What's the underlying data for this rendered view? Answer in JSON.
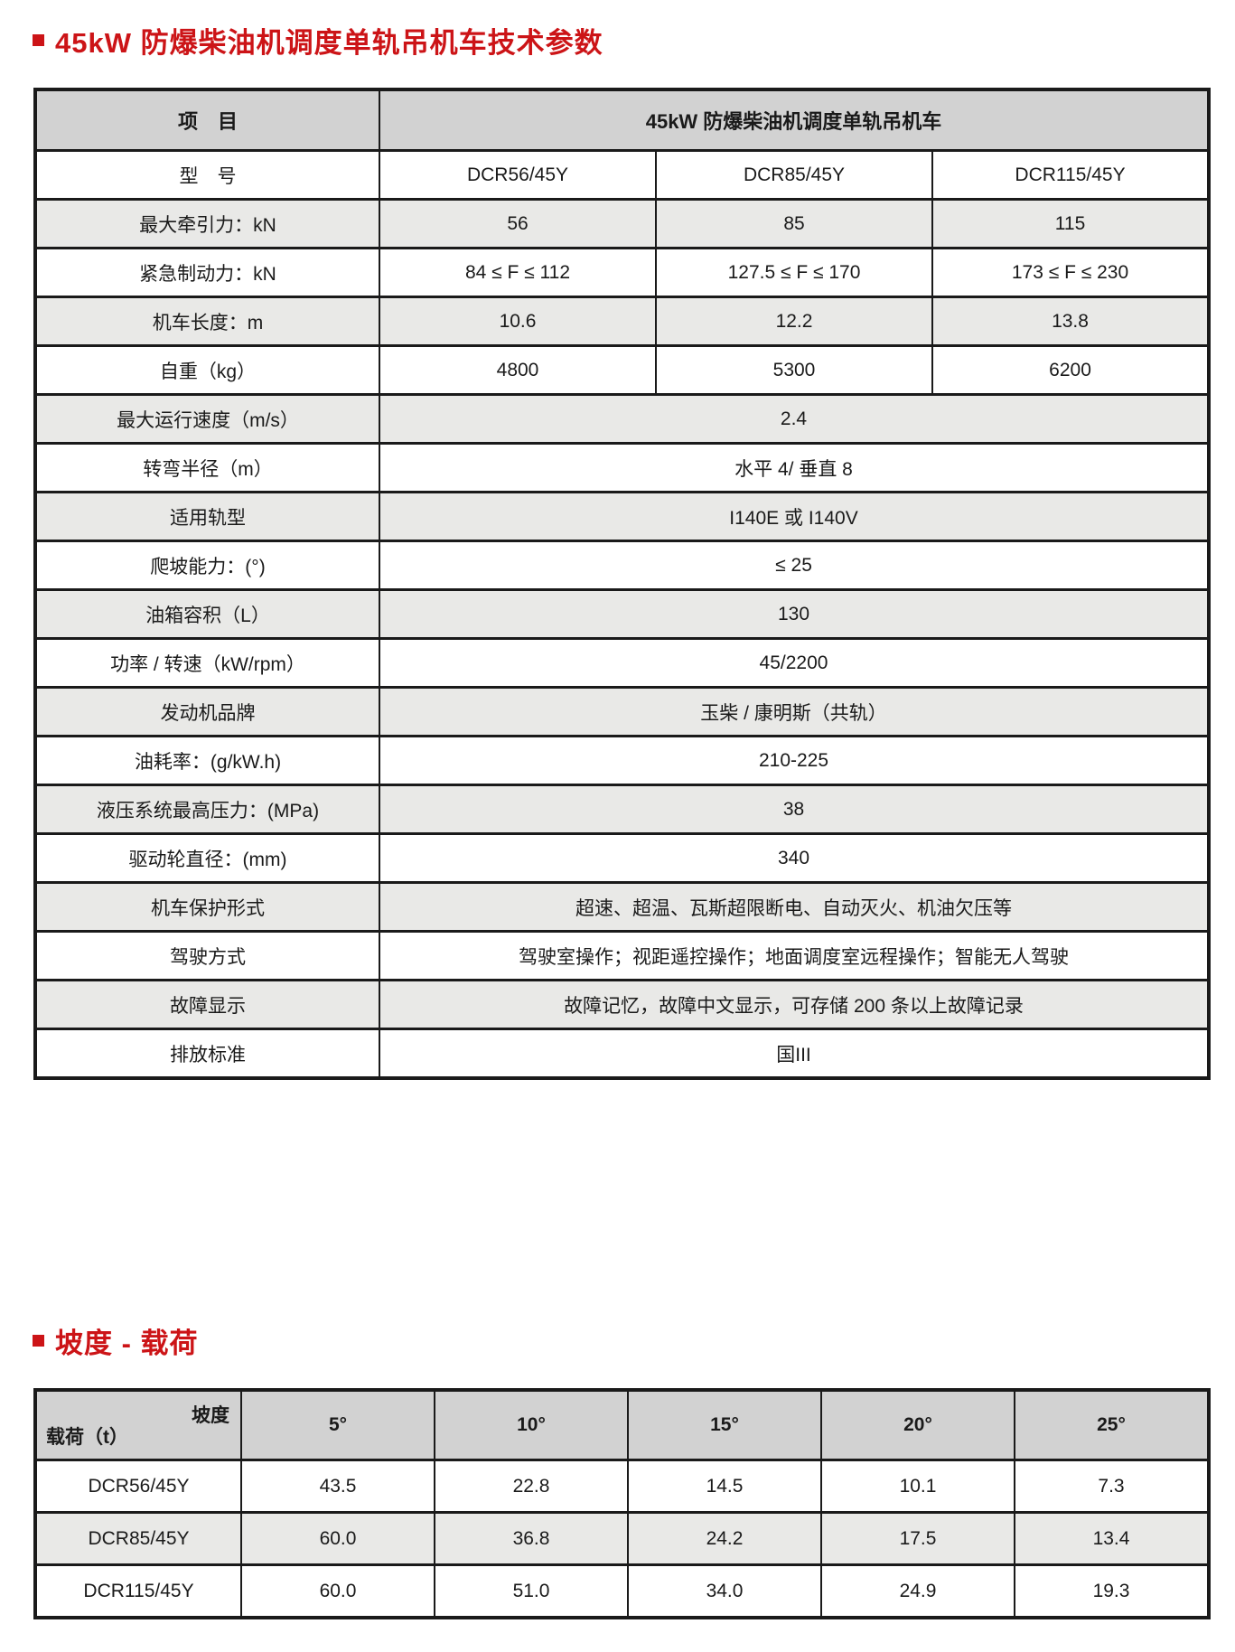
{
  "page": {
    "section1_title": "45kW 防爆柴油机调度单轨吊机车技术参数",
    "section2_title": "坡度 - 载荷"
  },
  "colors": {
    "accent_red": "#cc1417",
    "table_header_gray": "#d2d2d2",
    "alt_row_gray": "#e9e9e7",
    "border_black": "#1a1a1a"
  },
  "spec_table": {
    "header": {
      "item_label": "项　目",
      "group_label": "45kW 防爆柴油机调度单轨吊机车"
    },
    "rows": [
      {
        "label": "型　号",
        "values": [
          "DCR56/45Y",
          "DCR85/45Y",
          "DCR115/45Y"
        ],
        "shaded": false
      },
      {
        "label": "最大牵引力：kN",
        "values": [
          "56",
          "85",
          "115"
        ],
        "shaded": true
      },
      {
        "label": "紧急制动力：kN",
        "values": [
          "84 ≤ F ≤ 112",
          "127.5 ≤ F ≤ 170",
          "173 ≤ F ≤ 230"
        ],
        "shaded": false
      },
      {
        "label": "机车长度：m",
        "values": [
          "10.6",
          "12.2",
          "13.8"
        ],
        "shaded": true
      },
      {
        "label": "自重（kg）",
        "values": [
          "4800",
          "5300",
          "6200"
        ],
        "shaded": false
      },
      {
        "label": "最大运行速度（m/s）",
        "values": [
          "2.4"
        ],
        "shaded": true
      },
      {
        "label": "转弯半径（m）",
        "values": [
          "水平 4/ 垂直 8"
        ],
        "shaded": false
      },
      {
        "label": "适用轨型",
        "values": [
          "I140E 或 I140V"
        ],
        "shaded": true
      },
      {
        "label": "爬坡能力：(°)",
        "values": [
          "≤ 25"
        ],
        "shaded": false
      },
      {
        "label": "油箱容积（L）",
        "values": [
          "130"
        ],
        "shaded": true
      },
      {
        "label": "功率 / 转速（kW/rpm）",
        "values": [
          "45/2200"
        ],
        "shaded": false
      },
      {
        "label": "发动机品牌",
        "values": [
          "玉柴 / 康明斯（共轨）"
        ],
        "shaded": true
      },
      {
        "label": "油耗率：(g/kW.h)",
        "values": [
          "210-225"
        ],
        "shaded": false
      },
      {
        "label": "液压系统最高压力：(MPa)",
        "values": [
          "38"
        ],
        "shaded": true
      },
      {
        "label": "驱动轮直径：(mm)",
        "values": [
          "340"
        ],
        "shaded": false
      },
      {
        "label": "机车保护形式",
        "values": [
          "超速、超温、瓦斯超限断电、自动灭火、机油欠压等"
        ],
        "shaded": true
      },
      {
        "label": "驾驶方式",
        "values": [
          "驾驶室操作；视距遥控操作；地面调度室远程操作；智能无人驾驶"
        ],
        "shaded": false
      },
      {
        "label": "故障显示",
        "values": [
          "故障记忆，故障中文显示，可存储 200 条以上故障记录"
        ],
        "shaded": true
      },
      {
        "label": "排放标准",
        "values": [
          "国III"
        ],
        "shaded": false
      }
    ]
  },
  "load_table": {
    "corner": {
      "top_right_label": "坡度",
      "bottom_left_label": "载荷（t）"
    },
    "columns": [
      "5°",
      "10°",
      "15°",
      "20°",
      "25°"
    ],
    "rows": [
      {
        "model": "DCR56/45Y",
        "values": [
          "43.5",
          "22.8",
          "14.5",
          "10.1",
          "7.3"
        ],
        "shaded": false
      },
      {
        "model": "DCR85/45Y",
        "values": [
          "60.0",
          "36.8",
          "24.2",
          "17.5",
          "13.4"
        ],
        "shaded": true
      },
      {
        "model": "DCR115/45Y",
        "values": [
          "60.0",
          "51.0",
          "34.0",
          "24.9",
          "19.3"
        ],
        "shaded": false
      }
    ]
  }
}
